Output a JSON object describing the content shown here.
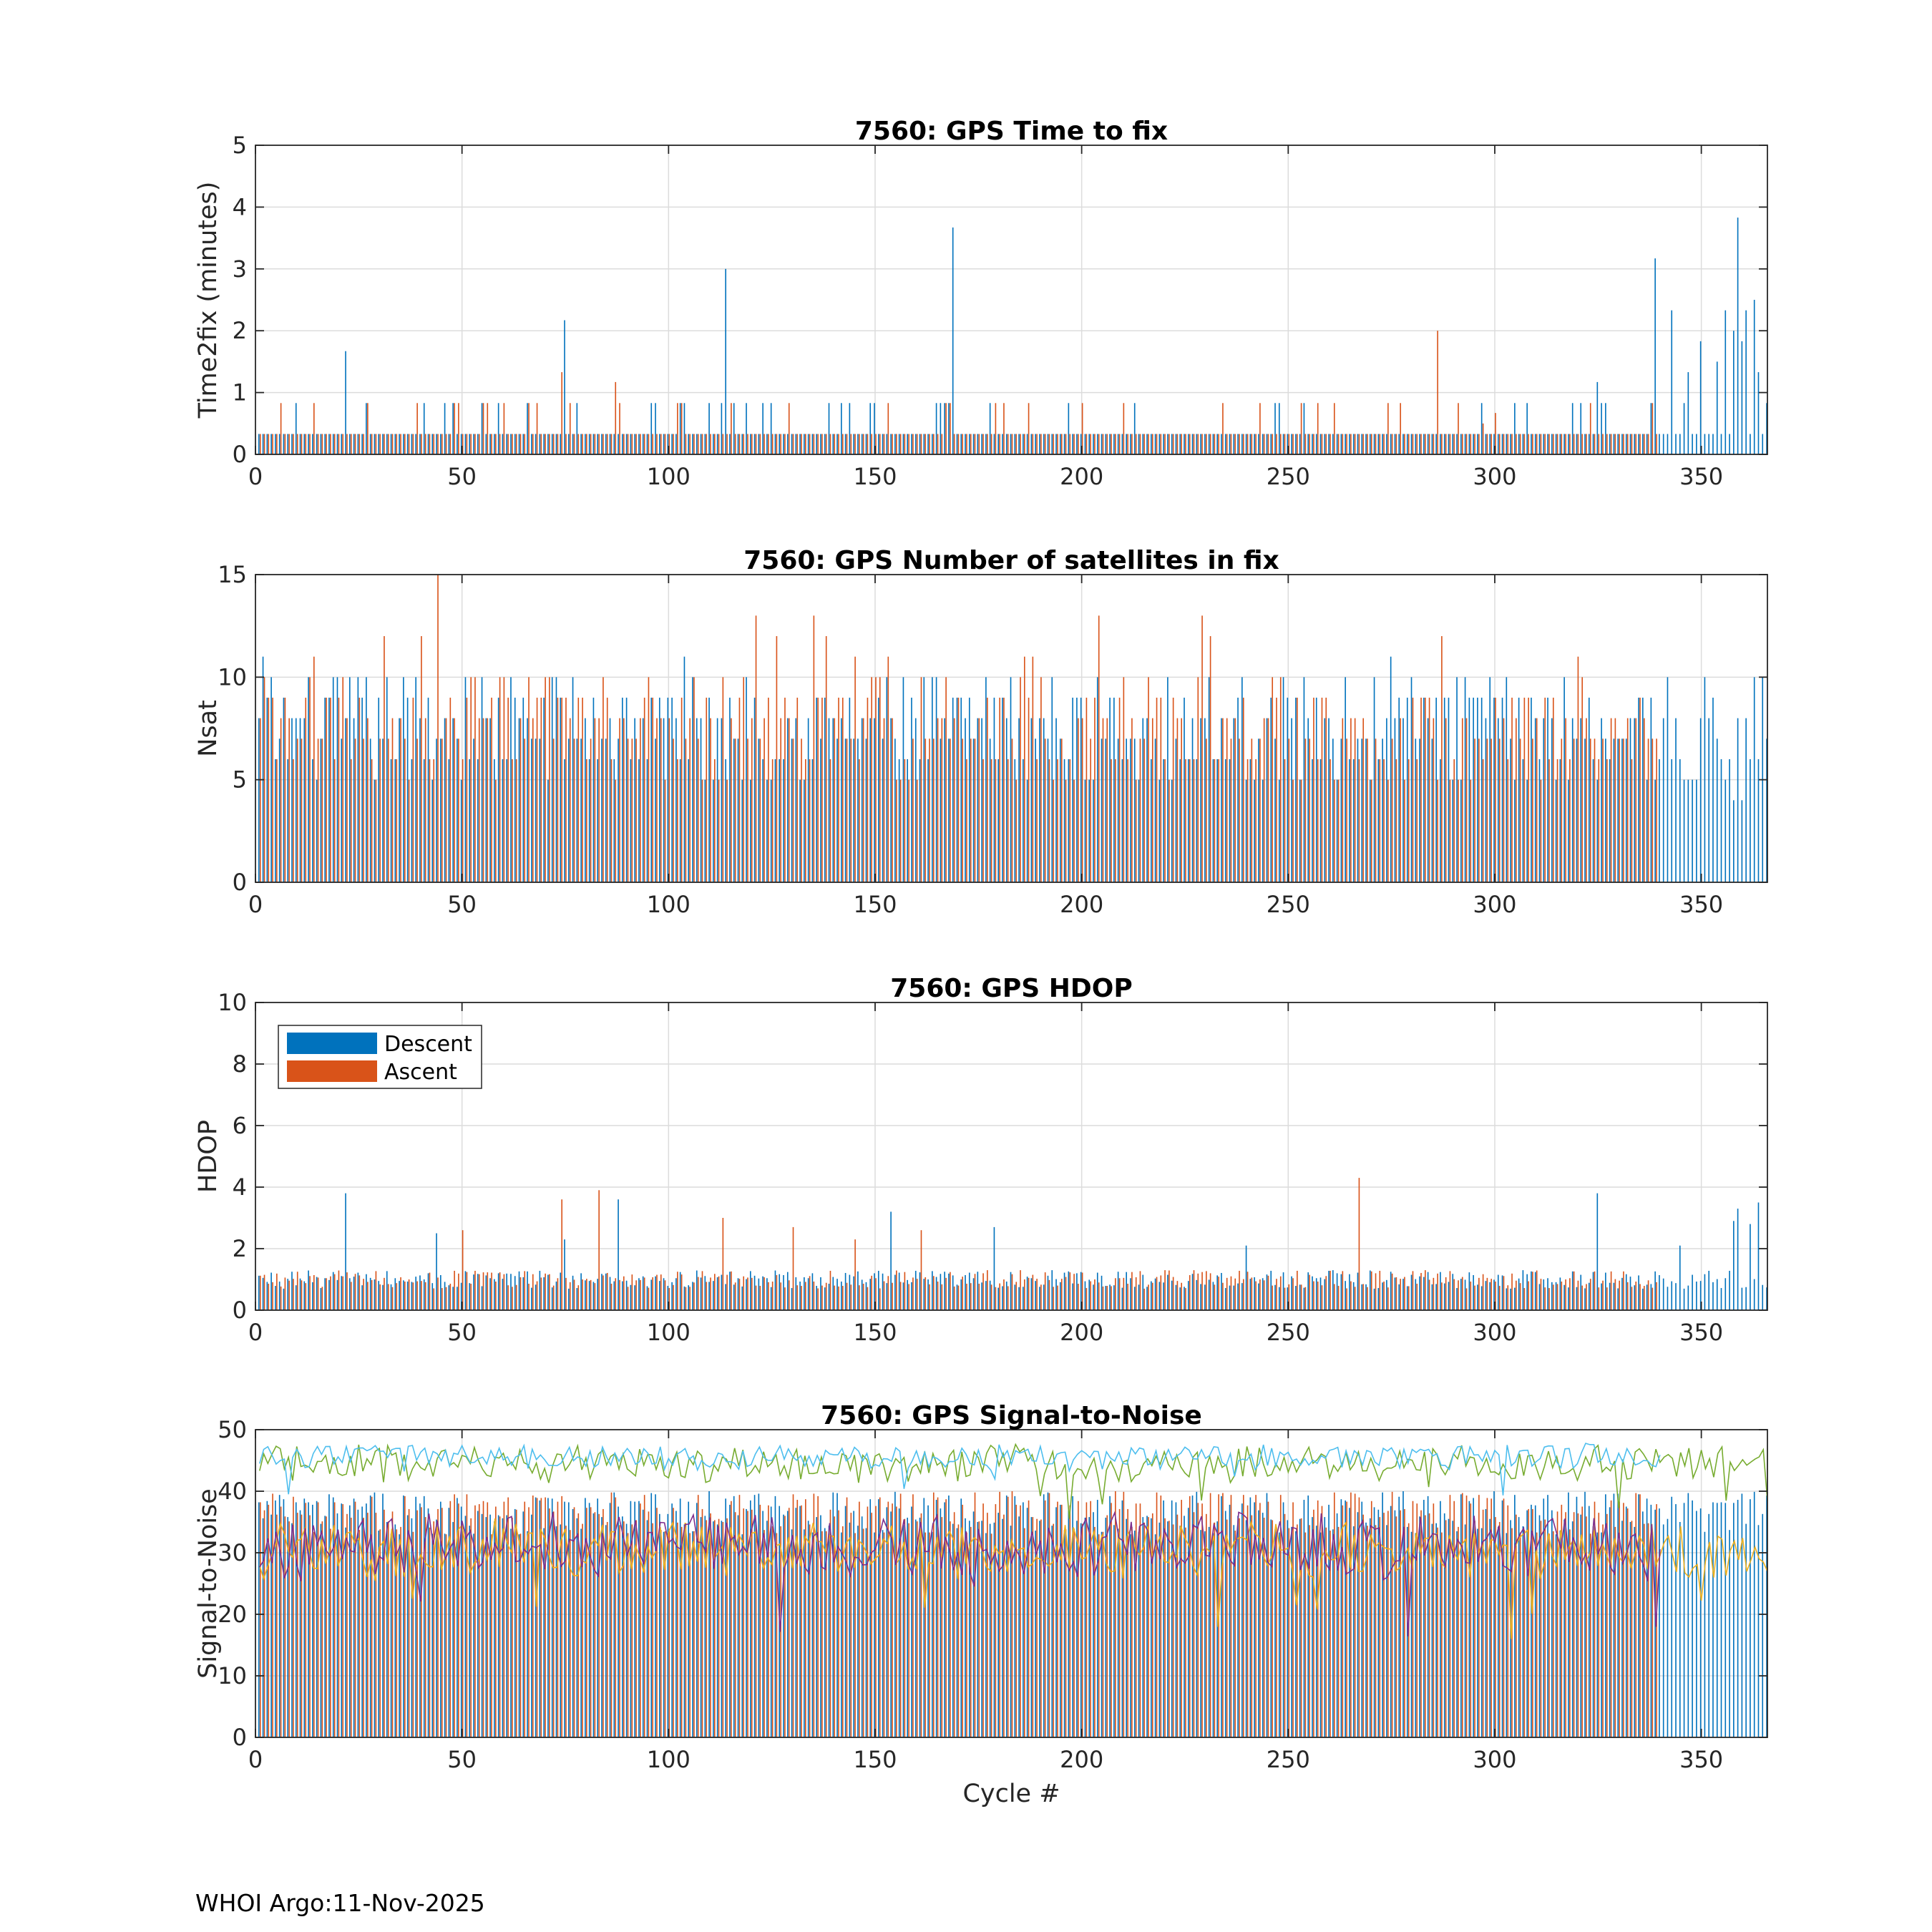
{
  "footer": "WHOI Argo:11-Nov-2025",
  "colors": {
    "descent": "#0072BD",
    "ascent": "#D95319",
    "snr_series": [
      "#77AC30",
      "#4DBEEE",
      "#EDB120",
      "#7E2F8E"
    ]
  },
  "legend": {
    "descent": "Descent",
    "ascent": "Ascent"
  },
  "chart_data": [
    {
      "id": "time2fix",
      "type": "bar",
      "title": "7560: GPS Time to fix",
      "xlabel": "",
      "ylabel": "Time2fix (minutes)",
      "xlim": [
        0,
        366
      ],
      "ylim": [
        0,
        5
      ],
      "xticks": [
        "0",
        "50",
        "100",
        "150",
        "200",
        "250",
        "300",
        "350"
      ],
      "yticks": [
        "0",
        "1",
        "2",
        "3",
        "4",
        "5"
      ],
      "grid": true,
      "legend": null,
      "series": [
        {
          "name": "Descent",
          "base": 0.33,
          "alt": 0.83,
          "n": 366,
          "spikes": [
            [
              22,
              1.67
            ],
            [
              75,
              2.17
            ],
            [
              114,
              3.0
            ],
            [
              169,
              3.67
            ],
            [
              325,
              1.17
            ],
            [
              339,
              3.17
            ],
            [
              343,
              2.33
            ],
            [
              347,
              1.33
            ],
            [
              350,
              1.83
            ],
            [
              354,
              1.5
            ],
            [
              356,
              2.33
            ],
            [
              358,
              2.0
            ],
            [
              359,
              3.83
            ],
            [
              360,
              1.83
            ],
            [
              361,
              2.33
            ],
            [
              363,
              2.5
            ],
            [
              364,
              1.33
            ]
          ]
        },
        {
          "name": "Ascent",
          "base": 0.33,
          "alt": 0.83,
          "n": 339,
          "spikes": [
            [
              74,
              1.33
            ],
            [
              87,
              1.17
            ],
            [
              286,
              2.0
            ],
            [
              297,
              0.5
            ],
            [
              300,
              0.67
            ]
          ]
        }
      ]
    },
    {
      "id": "nsat",
      "type": "bar",
      "title": "7560: GPS Number of satellites in fix",
      "xlabel": "",
      "ylabel": "Nsat",
      "xlim": [
        0,
        366
      ],
      "ylim": [
        0,
        15
      ],
      "xticks": [
        "0",
        "50",
        "100",
        "150",
        "200",
        "250",
        "300",
        "350"
      ],
      "yticks": [
        "0",
        "5",
        "10",
        "15"
      ],
      "grid": true,
      "legend": null,
      "series": [
        {
          "name": "Descent",
          "min": 5,
          "max": 10,
          "n": 366,
          "spikes": [
            [
              2,
              11
            ],
            [
              104,
              11
            ],
            [
              275,
              11
            ],
            [
              347,
              5
            ],
            [
              348,
              5
            ],
            [
              349,
              5
            ],
            [
              350,
              8
            ],
            [
              352,
              8
            ],
            [
              356,
              5
            ],
            [
              358,
              4
            ],
            [
              360,
              4
            ],
            [
              362,
              6
            ],
            [
              364,
              6
            ]
          ]
        },
        {
          "name": "Ascent",
          "min": 5,
          "max": 10,
          "n": 339,
          "spikes": [
            [
              14,
              11
            ],
            [
              31,
              12
            ],
            [
              40,
              12
            ],
            [
              44,
              15
            ],
            [
              121,
              13
            ],
            [
              126,
              12
            ],
            [
              135,
              13
            ],
            [
              138,
              12
            ],
            [
              145,
              11
            ],
            [
              153,
              11
            ],
            [
              186,
              11
            ],
            [
              188,
              11
            ],
            [
              204,
              13
            ],
            [
              229,
              13
            ],
            [
              231,
              12
            ],
            [
              287,
              12
            ],
            [
              320,
              11
            ]
          ]
        }
      ]
    },
    {
      "id": "hdop",
      "type": "bar",
      "title": "7560: GPS HDOP",
      "xlabel": "",
      "ylabel": "HDOP",
      "xlim": [
        0,
        366
      ],
      "ylim": [
        0,
        10
      ],
      "xticks": [
        "0",
        "50",
        "100",
        "150",
        "200",
        "250",
        "300",
        "350"
      ],
      "yticks": [
        "0",
        "2",
        "4",
        "6",
        "8",
        "10"
      ],
      "grid": true,
      "legend": "top-left",
      "series": [
        {
          "name": "Descent",
          "min": 0.7,
          "max": 1.3,
          "n": 366,
          "spikes": [
            [
              22,
              3.8
            ],
            [
              44,
              2.5
            ],
            [
              75,
              2.3
            ],
            [
              88,
              3.6
            ],
            [
              154,
              3.2
            ],
            [
              179,
              2.7
            ],
            [
              240,
              2.1
            ],
            [
              325,
              3.8
            ],
            [
              345,
              2.1
            ],
            [
              359,
              3.3
            ],
            [
              362,
              2.8
            ],
            [
              364,
              3.5
            ],
            [
              358,
              2.9
            ]
          ]
        },
        {
          "name": "Ascent",
          "min": 0.7,
          "max": 1.3,
          "n": 339,
          "spikes": [
            [
              50,
              2.6
            ],
            [
              74,
              3.6
            ],
            [
              83,
              3.9
            ],
            [
              113,
              3.0
            ],
            [
              130,
              2.7
            ],
            [
              145,
              2.3
            ],
            [
              161,
              2.6
            ],
            [
              267,
              4.3
            ]
          ]
        }
      ]
    },
    {
      "id": "snr",
      "type": "bar+line",
      "title": "7560: GPS Signal-to-Noise",
      "xlabel": "Cycle #",
      "ylabel": "Signal-to-Noise",
      "xlim": [
        0,
        366
      ],
      "ylim": [
        0,
        50
      ],
      "xticks": [
        "0",
        "50",
        "100",
        "150",
        "200",
        "250",
        "300",
        "350"
      ],
      "yticks": [
        "0",
        "10",
        "20",
        "30",
        "40",
        "50"
      ],
      "grid": true,
      "legend": null,
      "series": [
        {
          "name": "Descent",
          "kind": "bar",
          "min": 33,
          "max": 40,
          "n": 366
        },
        {
          "name": "Ascent",
          "kind": "bar",
          "min": 33,
          "max": 40,
          "n": 339
        },
        {
          "name": "max SNR (green)",
          "kind": "line",
          "mean": 44.5,
          "amp": 2.5,
          "n": 366
        },
        {
          "name": "max SNR (cyan)",
          "kind": "line",
          "mean": 45.5,
          "amp": 1.8,
          "n": 340
        },
        {
          "name": "mean SNR (yellow)",
          "kind": "line",
          "mean": 30.5,
          "amp": 4,
          "n": 366
        },
        {
          "name": "min SNR (purple)",
          "kind": "line",
          "mean": 31.0,
          "amp": 4.5,
          "n": 340
        }
      ]
    }
  ]
}
